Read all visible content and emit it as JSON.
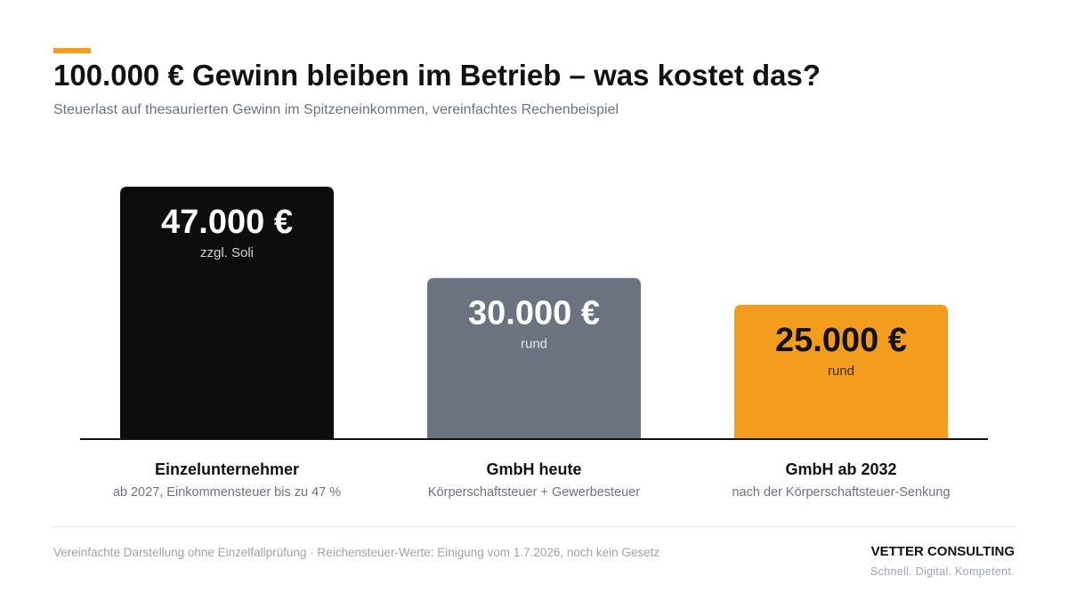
{
  "header": {
    "title": "100.000 € Gewinn bleiben im Betrieb – was kostet das?",
    "subtitle": "Steuerlast auf thesaurierten Gewinn im Spitzeneinkommen, vereinfachtes Rechenbeispiel"
  },
  "chart_data": {
    "type": "bar",
    "title": "100.000 € Gewinn bleiben im Betrieb – was kostet das?",
    "subtitle": "Steuerlast auf thesaurierten Gewinn im Spitzeneinkommen, vereinfachtes Rechenbeispiel",
    "categories": [
      "Einzelunternehmer",
      "GmbH heute",
      "GmbH ab 2032"
    ],
    "category_subtitles": [
      "ab 2027, Einkommensteuer bis zu 47 %",
      "Körperschaftsteuer + Gewerbesteuer",
      "nach der Körperschaftsteuer-Senkung"
    ],
    "values": [
      47000,
      30000,
      25000
    ],
    "value_labels": [
      "47.000 €",
      "30.000 €",
      "25.000 €"
    ],
    "value_notes": [
      "zzgl. Soli",
      "rund",
      "rund"
    ],
    "bar_colors": [
      "#0d0d0d",
      "#6b7280",
      "#f39c1d"
    ],
    "value_text_colors": [
      "#ffffff",
      "#ffffff",
      "#111111"
    ],
    "note_text_colors": [
      "#d1d5db",
      "#e5e7eb",
      "#3a2a10"
    ],
    "ylim": [
      0,
      47000
    ],
    "grid": false,
    "legend": "none"
  },
  "footer": {
    "note": "Vereinfachte Darstellung ohne Einzelfallprüfung · Reichensteuer-Werte: Einigung vom 1.7.2026, noch kein Gesetz",
    "brand": "VETTER CONSULTING",
    "tagline": "Schnell. Digital. Kompetent."
  },
  "colors": {
    "accent": "#f39c1d",
    "text": "#111111",
    "muted": "#6b7280"
  }
}
